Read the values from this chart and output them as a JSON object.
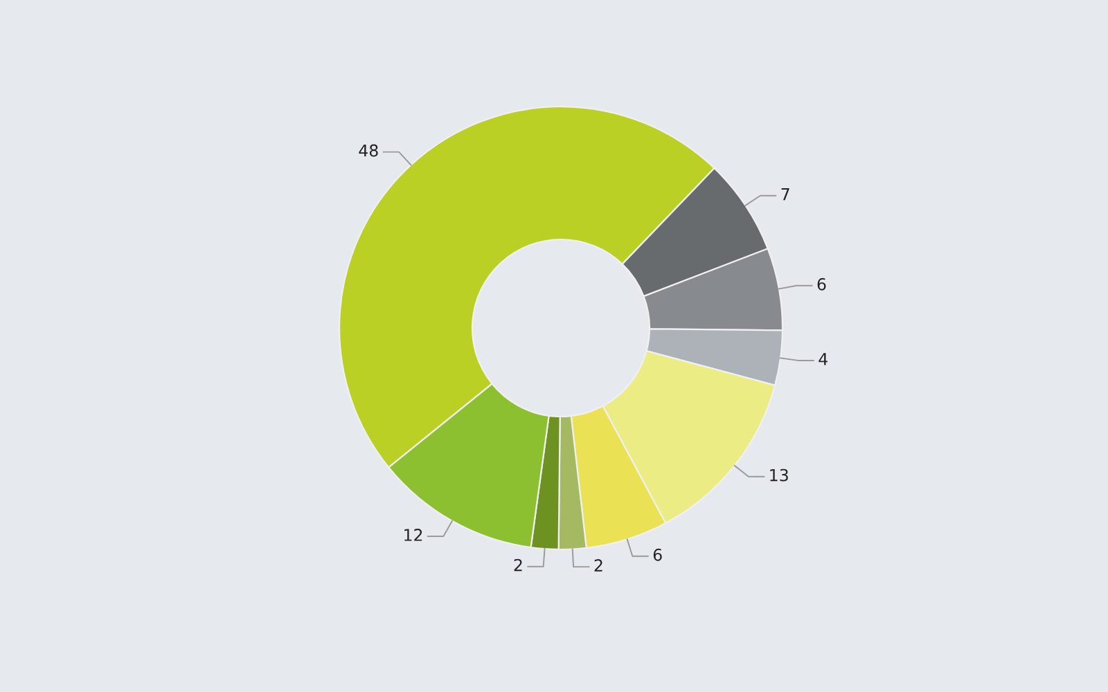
{
  "chart_data": {
    "type": "donut",
    "categories": [
      null,
      null,
      null,
      null,
      null,
      null,
      null,
      null,
      null
    ],
    "values": [
      48,
      7,
      6,
      4,
      13,
      6,
      2,
      2,
      12
    ],
    "colors": [
      "#bad025",
      "#676b6e",
      "#878b90",
      "#adb2b8",
      "#ecec84",
      "#ebe155",
      "#a5b862",
      "#6e9222",
      "#8cc031"
    ],
    "data_labels": true,
    "legend": false
  }
}
